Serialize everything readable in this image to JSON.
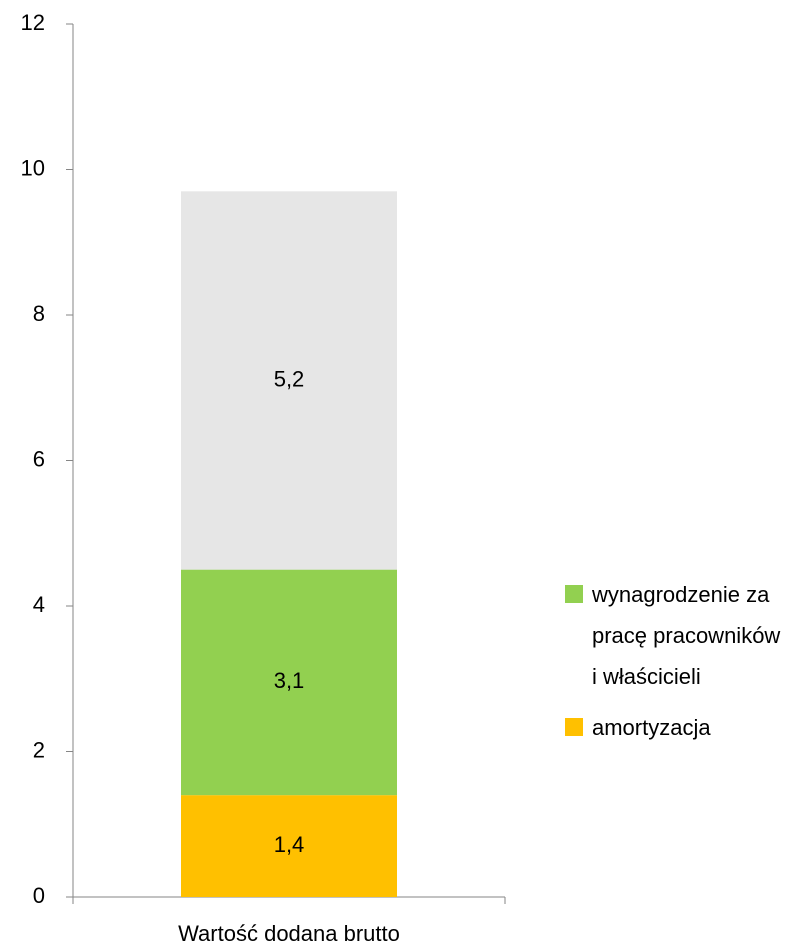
{
  "chart_data": {
    "type": "stacked_bar",
    "categories": [
      "Wartość dodana brutto"
    ],
    "series": [
      {
        "name": "amortyzacja",
        "color": "#ffc000",
        "values": [
          1.4
        ],
        "value_labels": [
          "1,4"
        ]
      },
      {
        "name": "wynagrodzenie za pracę pracowników i właścicieli",
        "color": "#92d050",
        "values": [
          3.1
        ],
        "value_labels": [
          "3,1"
        ]
      },
      {
        "color": "#e6e6e6",
        "values": [
          5.2
        ],
        "value_labels": [
          "5,2"
        ]
      }
    ],
    "ylim": [
      0,
      12
    ],
    "yticks": [
      0,
      2,
      4,
      6,
      8,
      10,
      12
    ],
    "legend": "right"
  }
}
